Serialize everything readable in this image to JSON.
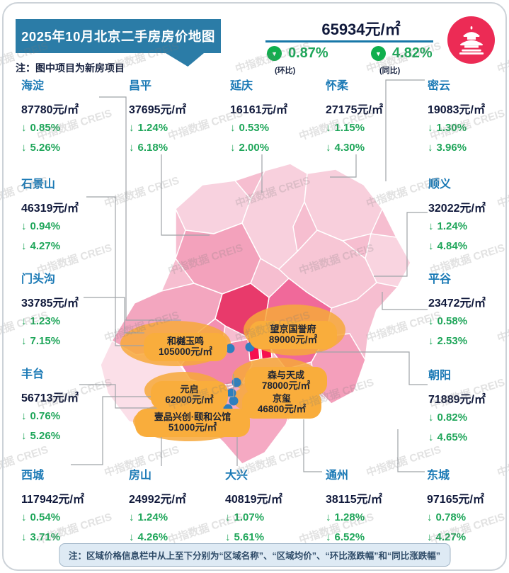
{
  "header": {
    "banner_title": "2025年10月北京二手房房价地图",
    "note": "注：图中项目为新房项目"
  },
  "summary": {
    "avg_price": "65934元/㎡",
    "mom": {
      "value": "0.87%",
      "label": "(环比)"
    },
    "yoy": {
      "value": "4.82%",
      "label": "(同比)"
    }
  },
  "icons": {
    "down_arrow": "↓",
    "down_triangle": "▼",
    "logo": "temple-of-heaven"
  },
  "watermark": "中指数据 CREIS",
  "districts": [
    {
      "id": "haidian",
      "name": "海淀",
      "price": "87780元/㎡",
      "mom": "0.85%",
      "yoy": "5.26%"
    },
    {
      "id": "changping",
      "name": "昌平",
      "price": "37695元/㎡",
      "mom": "1.24%",
      "yoy": "6.18%"
    },
    {
      "id": "yanqing",
      "name": "延庆",
      "price": "16161元/㎡",
      "mom": "0.53%",
      "yoy": "2.00%"
    },
    {
      "id": "huairou",
      "name": "怀柔",
      "price": "27175元/㎡",
      "mom": "1.15%",
      "yoy": "4.30%"
    },
    {
      "id": "miyun",
      "name": "密云",
      "price": "19083元/㎡",
      "mom": "1.30%",
      "yoy": "3.96%"
    },
    {
      "id": "shijingshan",
      "name": "石景山",
      "price": "46319元/㎡",
      "mom": "0.94%",
      "yoy": "4.27%"
    },
    {
      "id": "shunyi",
      "name": "顺义",
      "price": "32022元/㎡",
      "mom": "1.24%",
      "yoy": "4.84%"
    },
    {
      "id": "mentougou",
      "name": "门头沟",
      "price": "33785元/㎡",
      "mom": "1.23%",
      "yoy": "7.15%"
    },
    {
      "id": "pinggu",
      "name": "平谷",
      "price": "23472元/㎡",
      "mom": "0.58%",
      "yoy": "2.53%"
    },
    {
      "id": "fengtai",
      "name": "丰台",
      "price": "56713元/㎡",
      "mom": "0.76%",
      "yoy": "5.26%"
    },
    {
      "id": "chaoyang",
      "name": "朝阳",
      "price": "71889元/㎡",
      "mom": "0.82%",
      "yoy": "4.65%"
    },
    {
      "id": "xicheng",
      "name": "西城",
      "price": "117942元/㎡",
      "mom": "0.54%",
      "yoy": "3.71%"
    },
    {
      "id": "fangshan",
      "name": "房山",
      "price": "24992元/㎡",
      "mom": "1.24%",
      "yoy": "4.26%"
    },
    {
      "id": "daxing",
      "name": "大兴",
      "price": "40819元/㎡",
      "mom": "1.07%",
      "yoy": "5.61%"
    },
    {
      "id": "tongzhou",
      "name": "通州",
      "price": "38115元/㎡",
      "mom": "1.28%",
      "yoy": "6.52%"
    },
    {
      "id": "dongcheng",
      "name": "东城",
      "price": "97165元/㎡",
      "mom": "0.78%",
      "yoy": "4.27%"
    }
  ],
  "projects": [
    {
      "name": "和樾玉鸣",
      "price": "105000元/㎡"
    },
    {
      "name": "望京国誉府",
      "price": "89000元/㎡"
    },
    {
      "name": "森与天成",
      "price": "78000元/㎡"
    },
    {
      "name": "京玺",
      "price": "46800元/㎡"
    },
    {
      "name": "元启",
      "price": "62000元/㎡"
    },
    {
      "name": "壹品兴创·颐和公馆",
      "price": "51000元/㎡"
    }
  ],
  "footer_note": "注：区域价格信息栏中从上至下分别为“区域名称”、“区域均价”、“环比涨跌幅”和“同比涨跌幅”",
  "colors": {
    "banner_blue": "#2B7CA7",
    "district_name_blue": "#1A79B5",
    "decline_green": "#1FA65A",
    "price_navy": "#10193B",
    "callout_orange": "#F9AD3C",
    "logo_red": "#EC2B55",
    "map_core_red": "#F60F4F",
    "map_haidian_crimson": "#E83A6B",
    "project_dot_blue": "#2E7FBE"
  },
  "chart_data": {
    "type": "heatmap",
    "title": "2025年10月北京二手房房价地图",
    "unit": "元/㎡",
    "note": "图中项目为新房项目",
    "city_average": {
      "price": 65934,
      "mom_pct": -0.87,
      "yoy_pct": -4.82
    },
    "districts": [
      {
        "name": "海淀",
        "price": 87780,
        "mom_pct": -0.85,
        "yoy_pct": -5.26
      },
      {
        "name": "昌平",
        "price": 37695,
        "mom_pct": -1.24,
        "yoy_pct": -6.18
      },
      {
        "name": "延庆",
        "price": 16161,
        "mom_pct": -0.53,
        "yoy_pct": -2.0
      },
      {
        "name": "怀柔",
        "price": 27175,
        "mom_pct": -1.15,
        "yoy_pct": -4.3
      },
      {
        "name": "密云",
        "price": 19083,
        "mom_pct": -1.3,
        "yoy_pct": -3.96
      },
      {
        "name": "石景山",
        "price": 46319,
        "mom_pct": -0.94,
        "yoy_pct": -4.27
      },
      {
        "name": "顺义",
        "price": 32022,
        "mom_pct": -1.24,
        "yoy_pct": -4.84
      },
      {
        "name": "门头沟",
        "price": 33785,
        "mom_pct": -1.23,
        "yoy_pct": -7.15
      },
      {
        "name": "平谷",
        "price": 23472,
        "mom_pct": -0.58,
        "yoy_pct": -2.53
      },
      {
        "name": "丰台",
        "price": 56713,
        "mom_pct": -0.76,
        "yoy_pct": -5.26
      },
      {
        "name": "朝阳",
        "price": 71889,
        "mom_pct": -0.82,
        "yoy_pct": -4.65
      },
      {
        "name": "西城",
        "price": 117942,
        "mom_pct": -0.54,
        "yoy_pct": -3.71
      },
      {
        "name": "房山",
        "price": 24992,
        "mom_pct": -1.24,
        "yoy_pct": -4.26
      },
      {
        "name": "大兴",
        "price": 40819,
        "mom_pct": -1.07,
        "yoy_pct": -5.61
      },
      {
        "name": "通州",
        "price": 38115,
        "mom_pct": -1.28,
        "yoy_pct": -6.52
      },
      {
        "name": "东城",
        "price": 97165,
        "mom_pct": -0.78,
        "yoy_pct": -4.27
      }
    ],
    "projects": [
      {
        "name": "和樾玉鸣",
        "price": 105000
      },
      {
        "name": "望京国誉府",
        "price": 89000
      },
      {
        "name": "森与天成",
        "price": 78000
      },
      {
        "name": "京玺",
        "price": 46800
      },
      {
        "name": "元启",
        "price": 62000
      },
      {
        "name": "壹品兴创·颐和公馆",
        "price": 51000
      }
    ]
  }
}
